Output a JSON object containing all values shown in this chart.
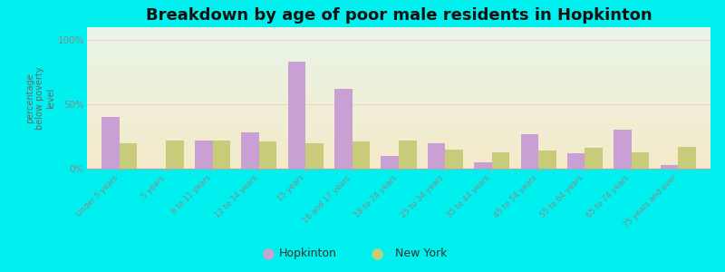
{
  "title": "Breakdown by age of poor male residents in Hopkinton",
  "ylabel": "percentage\nbelow poverty\nlevel",
  "categories": [
    "Under 5 years",
    "5 years",
    "6 to 11 years",
    "12 to 14 years",
    "15 years",
    "16 and 17 years",
    "18 to 24 years",
    "25 to 34 years",
    "35 to 44 years",
    "45 to 54 years",
    "55 to 64 years",
    "65 to 74 years",
    "75 years and over"
  ],
  "hopkinton": [
    40,
    0,
    22,
    28,
    83,
    62,
    10,
    20,
    5,
    27,
    12,
    30,
    3
  ],
  "newyork": [
    20,
    22,
    22,
    21,
    20,
    21,
    22,
    15,
    13,
    14,
    16,
    13,
    17
  ],
  "hopkinton_color": "#c9a0d4",
  "newyork_color": "#c8cc7a",
  "hopkinton_label": "Hopkinton",
  "newyork_label": "New York",
  "yticks": [
    0,
    50,
    100
  ],
  "ytick_labels": [
    "0%",
    "50%",
    "100%"
  ],
  "ylim": [
    0,
    110
  ],
  "background_color": "#00f0f0",
  "plot_bg_color": "#d8efd8",
  "title_fontsize": 13,
  "bar_width": 0.38,
  "grid_color": "#dddddd",
  "tick_color": "#888888",
  "label_color": "#666666"
}
